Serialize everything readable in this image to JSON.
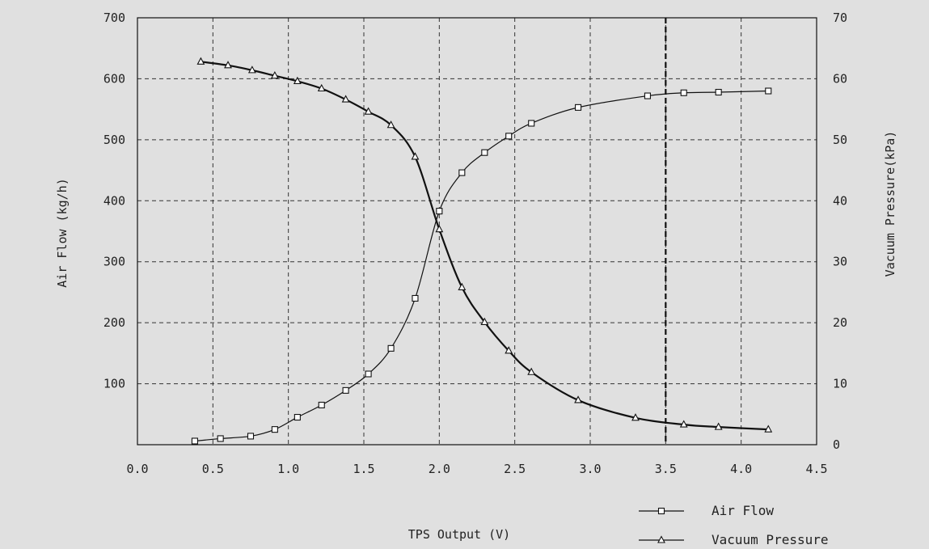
{
  "chart_data": {
    "type": "line",
    "xlabel": "TPS Output (V)",
    "ylabel_left": "Air Flow (kg/h)",
    "ylabel_right": "Vacuum Pressure(kPa)",
    "xlim": [
      0.0,
      4.5
    ],
    "ylim_left": [
      0,
      700
    ],
    "ylim_right": [
      0,
      70
    ],
    "x_ticks": [
      "0.0",
      "0.5",
      "1.0",
      "1.5",
      "2.0",
      "2.5",
      "3.0",
      "3.5",
      "4.0",
      "4.5"
    ],
    "y_left_ticks": [
      "100",
      "200",
      "300",
      "400",
      "500",
      "600",
      "700"
    ],
    "y_right_ticks": [
      "0",
      "10",
      "20",
      "30",
      "40",
      "50",
      "60",
      "70"
    ],
    "grid": true,
    "reference_line_x": 3.5,
    "legend_position": "bottom-right",
    "series": [
      {
        "name": "Air Flow",
        "axis": "left",
        "marker": "square",
        "x": [
          0.38,
          0.55,
          0.75,
          0.91,
          1.06,
          1.22,
          1.38,
          1.53,
          1.68,
          1.84,
          2.0,
          2.15,
          2.3,
          2.46,
          2.61,
          2.92,
          3.38,
          3.62,
          3.85,
          4.18
        ],
        "y": [
          6,
          10,
          14,
          25,
          45,
          65,
          89,
          116,
          158,
          240,
          383,
          446,
          479,
          506,
          527,
          553,
          572,
          577,
          578,
          580
        ]
      },
      {
        "name": "Vacuum Pressure",
        "axis": "right",
        "marker": "triangle",
        "x": [
          0.42,
          0.6,
          0.76,
          0.91,
          1.06,
          1.22,
          1.38,
          1.53,
          1.68,
          1.84,
          2.0,
          2.15,
          2.3,
          2.46,
          2.61,
          2.92,
          3.3,
          3.62,
          3.85,
          4.18
        ],
        "y": [
          62.8,
          62.2,
          61.4,
          60.5,
          59.6,
          58.4,
          56.6,
          54.6,
          52.4,
          47.2,
          35.3,
          25.8,
          20.1,
          15.4,
          11.9,
          7.3,
          4.4,
          3.3,
          2.9,
          2.5
        ]
      }
    ]
  }
}
